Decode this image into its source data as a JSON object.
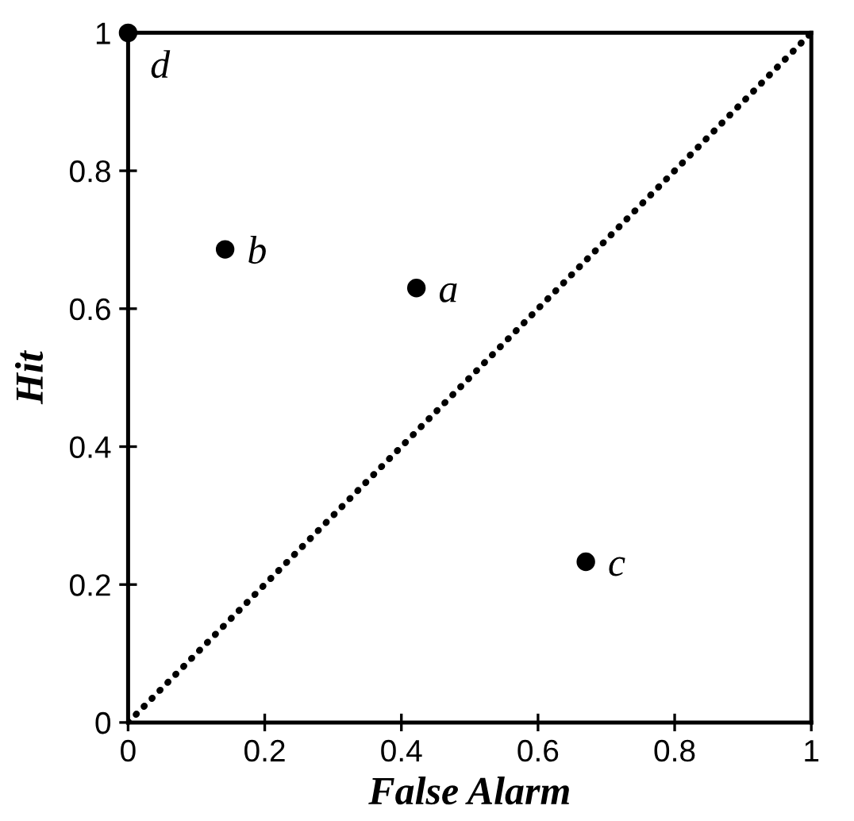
{
  "chart_data": {
    "type": "scatter",
    "xlabel": "False Alarm",
    "ylabel": "Hit",
    "xlim": [
      0,
      1
    ],
    "ylim": [
      0,
      1
    ],
    "xticks": [
      0,
      0.2,
      0.4,
      0.6,
      0.8,
      1
    ],
    "yticks": [
      0,
      0.2,
      0.4,
      0.6,
      0.8,
      1
    ],
    "grid": false,
    "legend": false,
    "series": [
      {
        "color": "#000000",
        "marker": "circle",
        "x": [
          0.422,
          0.142,
          0.67,
          0
        ],
        "values": [
          0.63,
          0.686,
          0.233,
          1
        ]
      },
      {
        "type": "line",
        "color": "#000000",
        "line_style": "dotted",
        "x": [
          0,
          1
        ],
        "values": [
          0,
          1
        ]
      }
    ],
    "annotations": [
      {
        "text": "a",
        "x": 0.422,
        "y": 0.63
      },
      {
        "text": "b",
        "x": 0.142,
        "y": 0.686
      },
      {
        "text": "c",
        "x": 0.67,
        "y": 0.233
      },
      {
        "text": "d",
        "x": 0,
        "y": 1
      }
    ]
  }
}
